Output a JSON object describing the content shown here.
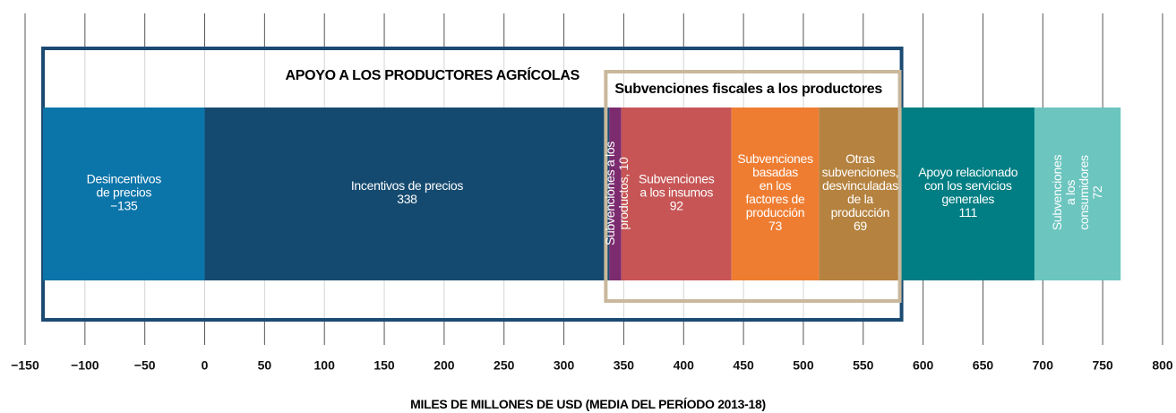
{
  "chart_data": {
    "type": "bar",
    "x_label": "MILES DE MILLONES DE USD (MEDIA DEL PERÍODO 2013-18)",
    "groups": [
      "APOYO A LOS PRODUCTORES AGRÍCOLAS",
      "Subvenciones fiscales a los productores"
    ],
    "categories": [
      "Desincentivos\nde precios",
      "Incentivos de precios",
      "Subvenciones a los\nproductos,",
      "Subvenciones\na los insumos",
      "Subvenciones\nbasadas\nen los\nfactores de\nproducción",
      "Otras\nsubvenciones,\ndesvinculadas\nde la\nproducción",
      "Apoyo relacionado\ncon los servicios\ngenerales",
      "Subvenciones\na los consumidores"
    ],
    "values": [
      -135,
      338,
      10,
      92,
      73,
      69,
      111,
      72
    ],
    "value_labels": [
      "−135",
      "338",
      "10",
      "92",
      "73",
      "69",
      "111",
      "72"
    ],
    "colors": [
      "#0b74a9",
      "#154a70",
      "#7c2b6f",
      "#c75555",
      "#ee7d32",
      "#b5823f",
      "#007e83",
      "#6cc5bf"
    ],
    "xlim": [
      -150,
      800
    ],
    "xticks": [
      {
        "value": -150,
        "label": "−150"
      },
      {
        "value": -100,
        "label": "−100"
      },
      {
        "value": -50,
        "label": "−50"
      },
      0,
      50,
      100,
      150,
      200,
      250,
      300,
      350,
      400,
      450,
      500,
      550,
      600,
      650,
      700,
      750,
      800
    ],
    "grid": true
  }
}
